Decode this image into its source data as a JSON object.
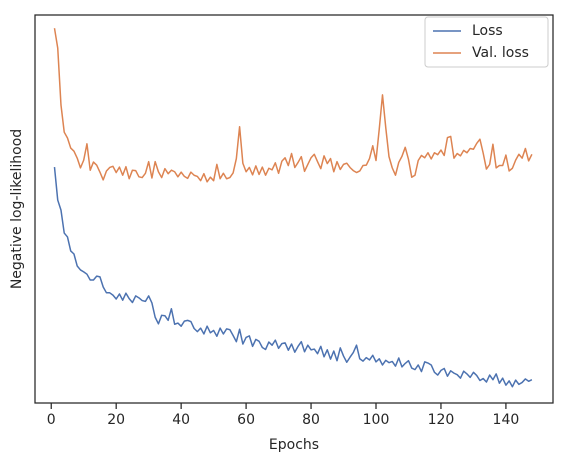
{
  "chart_data": {
    "type": "line",
    "x_label": "Epochs",
    "y_label": "Negative log-likelihood",
    "x": [
      1,
      2,
      3,
      4,
      5,
      6,
      7,
      8,
      9,
      10,
      11,
      12,
      13,
      14,
      15,
      16,
      17,
      18,
      19,
      20,
      21,
      22,
      23,
      24,
      25,
      26,
      27,
      28,
      29,
      30,
      31,
      32,
      33,
      34,
      35,
      36,
      37,
      38,
      39,
      40,
      41,
      42,
      43,
      44,
      45,
      46,
      47,
      48,
      49,
      50,
      51,
      52,
      53,
      54,
      55,
      56,
      57,
      58,
      59,
      60,
      61,
      62,
      63,
      64,
      65,
      66,
      67,
      68,
      69,
      70,
      71,
      72,
      73,
      74,
      75,
      76,
      77,
      78,
      79,
      80,
      81,
      82,
      83,
      84,
      85,
      86,
      87,
      88,
      89,
      90,
      91,
      92,
      93,
      94,
      95,
      96,
      97,
      98,
      99,
      100,
      101,
      102,
      103,
      104,
      105,
      106,
      107,
      108,
      109,
      110,
      111,
      112,
      113,
      114,
      115,
      116,
      117,
      118,
      119,
      120,
      121,
      122,
      123,
      124,
      125,
      126,
      127,
      128,
      129,
      130,
      131,
      132,
      133,
      134,
      135,
      136,
      137,
      138,
      139,
      140,
      141,
      142,
      143,
      144,
      145,
      146,
      147,
      148
    ],
    "series": [
      {
        "name": "Loss",
        "color": "#4c72b0",
        "values": [
          60.8,
          52.3,
          49.7,
          43.8,
          42.8,
          39.2,
          38.4,
          35.3,
          34.3,
          33.8,
          33.2,
          31.7,
          31.7,
          32.7,
          32.5,
          29.9,
          28.4,
          28.4,
          27.8,
          26.8,
          28.1,
          26.5,
          28.3,
          26.9,
          25.9,
          27.6,
          27.1,
          26.4,
          26.2,
          27.6,
          25.8,
          22.1,
          20.4,
          22.6,
          22.5,
          21.3,
          24.3,
          20.3,
          20.6,
          19.8,
          21.1,
          21.3,
          21.0,
          19.2,
          18.4,
          19.3,
          17.8,
          19.8,
          18.1,
          18.7,
          17.2,
          19.3,
          17.8,
          19.1,
          18.9,
          17.4,
          15.8,
          19.0,
          15.2,
          16.9,
          17.3,
          14.6,
          16.4,
          15.9,
          14.3,
          13.8,
          15.7,
          14.9,
          16.2,
          14.1,
          15.3,
          15.5,
          13.6,
          15.2,
          13.1,
          14.6,
          15.8,
          13.2,
          14.9,
          13.7,
          13.9,
          12.7,
          14.6,
          11.9,
          13.7,
          11.3,
          13.4,
          10.9,
          14.2,
          12.1,
          10.5,
          11.8,
          13.0,
          14.9,
          11.4,
          10.8,
          11.7,
          11.1,
          12.3,
          10.6,
          11.4,
          9.8,
          11.0,
          10.4,
          10.7,
          9.5,
          11.6,
          9.3,
          10.2,
          10.9,
          9.0,
          8.6,
          9.8,
          8.1,
          10.6,
          10.3,
          9.8,
          7.9,
          7.2,
          8.4,
          8.9,
          6.9,
          8.3,
          7.7,
          7.3,
          6.4,
          8.2,
          7.5,
          6.6,
          7.9,
          7.1,
          5.8,
          6.3,
          5.4,
          7.2,
          6.0,
          7.5,
          5.1,
          6.4,
          4.6,
          5.7,
          4.2,
          5.9,
          4.8,
          5.3,
          6.2,
          5.6,
          6.0
        ]
      },
      {
        "name": "Val. loss",
        "color": "#dd8452",
        "values": [
          96.6,
          91.5,
          76.8,
          69.8,
          68.3,
          65.7,
          64.9,
          63.1,
          60.6,
          62.6,
          66.8,
          60.0,
          62.1,
          61.3,
          59.5,
          57.5,
          59.8,
          60.7,
          61.0,
          59.4,
          60.8,
          58.7,
          60.9,
          57.8,
          60.0,
          59.9,
          58.3,
          58.1,
          59.2,
          62.2,
          58.0,
          62.2,
          59.6,
          58.1,
          60.4,
          59.1,
          60.0,
          59.6,
          58.3,
          59.5,
          58.4,
          57.9,
          59.5,
          58.7,
          58.4,
          57.3,
          59.1,
          57.0,
          58.2,
          57.3,
          61.5,
          57.8,
          59.2,
          57.8,
          58.1,
          59.3,
          63.0,
          71.2,
          61.8,
          59.6,
          60.7,
          58.8,
          61.1,
          58.9,
          60.8,
          58.7,
          60.5,
          60.1,
          61.9,
          59.2,
          62.3,
          63.2,
          61.2,
          64.3,
          60.7,
          62.0,
          63.5,
          59.7,
          61.5,
          63.2,
          64.1,
          62.2,
          60.4,
          63.7,
          61.7,
          63.0,
          59.6,
          62.2,
          60.2,
          61.5,
          61.8,
          60.7,
          59.9,
          59.4,
          59.8,
          61.2,
          61.3,
          63.0,
          66.3,
          62.5,
          70.6,
          79.4,
          71.0,
          63.5,
          60.6,
          58.7,
          62.0,
          63.6,
          65.9,
          62.8,
          58.2,
          58.7,
          62.5,
          63.8,
          63.2,
          64.5,
          62.9,
          64.5,
          64.0,
          65.2,
          63.8,
          68.4,
          68.7,
          63.1,
          64.3,
          63.7,
          65.1,
          64.5,
          65.6,
          65.4,
          66.9,
          68.0,
          64.4,
          60.3,
          61.5,
          66.7,
          60.6,
          61.2,
          61.2,
          63.9,
          59.8,
          60.5,
          62.6,
          64.1,
          63.1,
          65.6,
          62.4,
          64.1
        ]
      }
    ],
    "xlim": [
      -5,
      154.5
    ],
    "xticks": [
      0,
      20,
      40,
      60,
      80,
      100,
      120,
      140
    ],
    "ylim": [
      0,
      100
    ],
    "legend": "upper right"
  }
}
